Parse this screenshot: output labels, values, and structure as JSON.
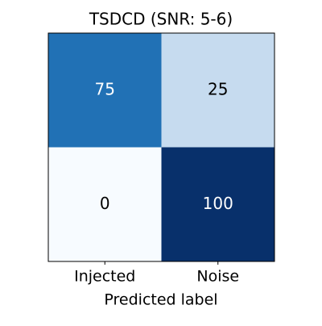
{
  "chart_data": {
    "type": "heatmap",
    "title": "TSDCD (SNR: 5-6)",
    "xlabel": "Predicted label",
    "categories": [
      "Injected",
      "Noise"
    ],
    "values": [
      [
        75,
        25
      ],
      [
        0,
        100
      ]
    ],
    "clim": [
      0,
      100
    ],
    "colorscale": [
      "#f7fbff",
      "#deebf7",
      "#c6dbef",
      "#9ecae1",
      "#6baed6",
      "#4292c6",
      "#2171b5",
      "#08519c",
      "#08306b"
    ]
  }
}
